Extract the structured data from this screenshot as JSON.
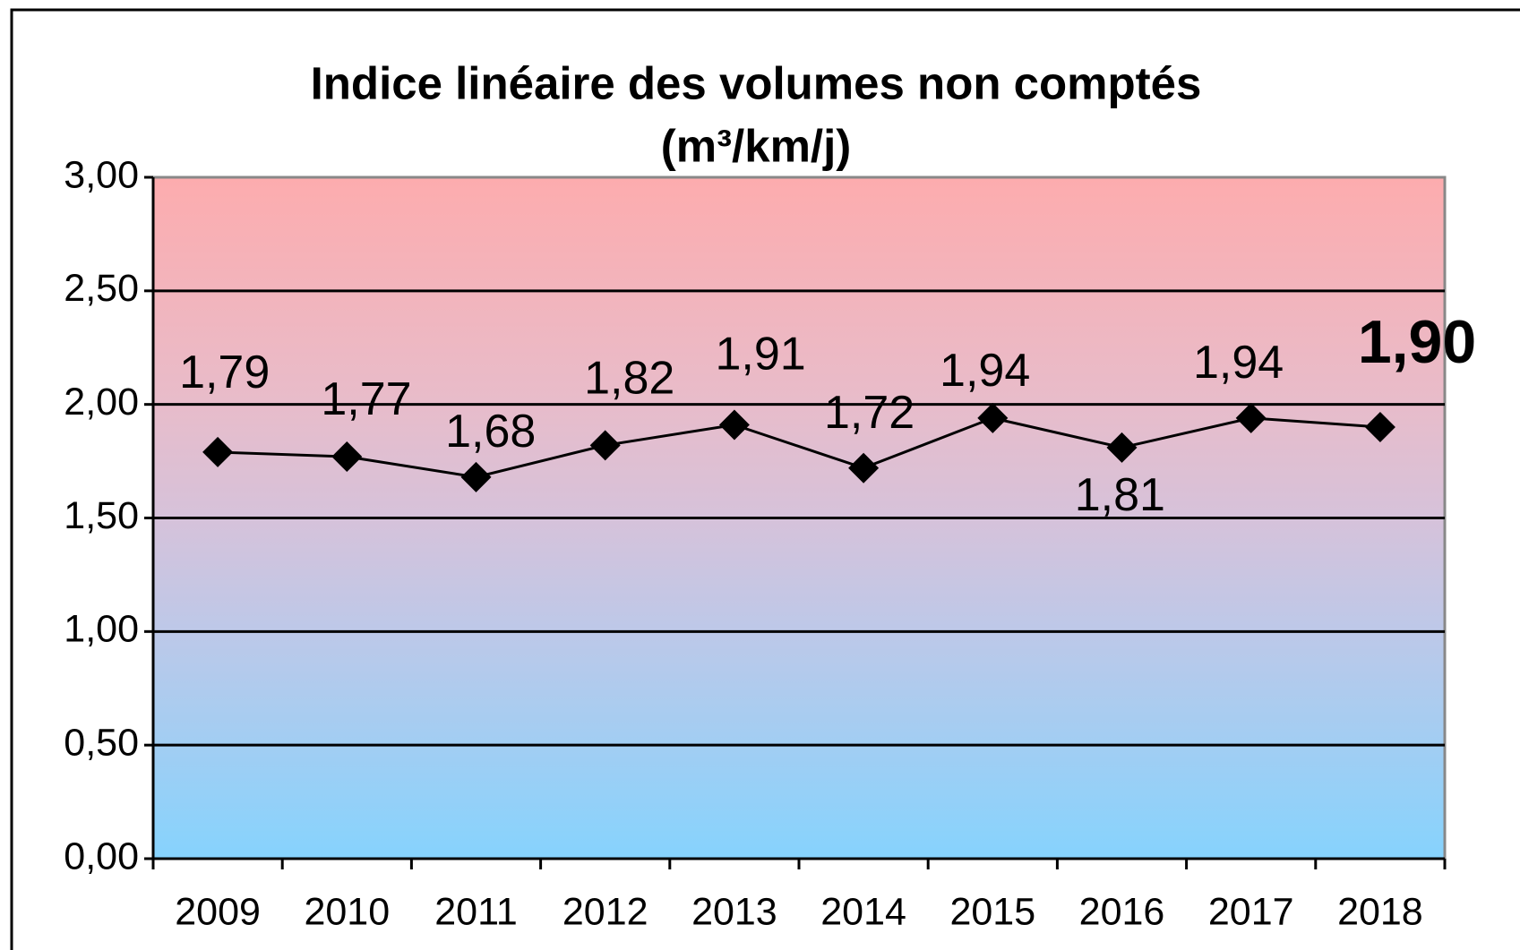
{
  "chart_data": {
    "type": "line",
    "title": [
      "Indice linéaire des volumes non comptés",
      "(m³/km/j)"
    ],
    "categories": [
      "2009",
      "2010",
      "2011",
      "2012",
      "2013",
      "2014",
      "2015",
      "2016",
      "2017",
      "2018"
    ],
    "series": [
      {
        "name": "Indice linéaire des volumes non comptés",
        "color": "#000000",
        "values": [
          1.79,
          1.77,
          1.68,
          1.82,
          1.91,
          1.72,
          1.94,
          1.81,
          1.94,
          1.9
        ],
        "value_labels": [
          "1,79",
          "1,77",
          "1,68",
          "1,82",
          "1,91",
          "1,72",
          "1,94",
          "1,81",
          "1,94",
          "1,90"
        ]
      }
    ],
    "ylim": [
      0,
      3
    ],
    "yticks": [
      {
        "value": 0,
        "label": "0,00"
      },
      {
        "value": 0.5,
        "label": "0,50"
      },
      {
        "value": 1,
        "label": "1,00"
      },
      {
        "value": 1.5,
        "label": "1,50"
      },
      {
        "value": 2,
        "label": "2,00"
      },
      {
        "value": 2.5,
        "label": "2,50"
      },
      {
        "value": 3,
        "label": "3,00"
      }
    ],
    "grid": true
  }
}
